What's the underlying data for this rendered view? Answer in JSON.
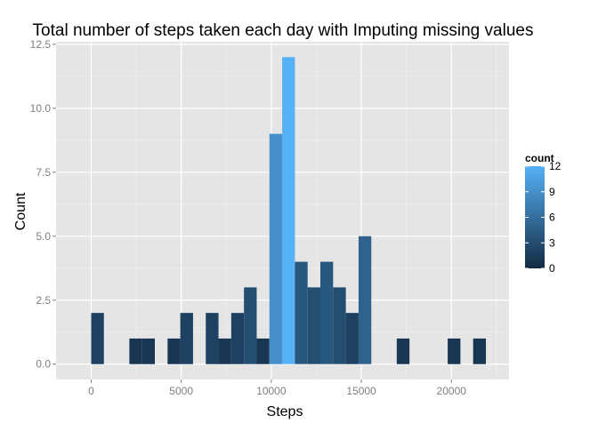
{
  "chart_data": {
    "type": "bar",
    "title": "Total number of steps taken each day with Imputing missing values",
    "xlabel": "Steps",
    "ylabel": "Count",
    "xlim": [
      -1950,
      23200
    ],
    "ylim": [
      -0.6,
      12.6
    ],
    "x_ticks": [
      0,
      5000,
      10000,
      15000,
      20000
    ],
    "y_ticks": [
      0,
      2.5,
      5,
      7.5,
      10,
      12.5
    ],
    "x_tick_labels": [
      "0",
      "5000",
      "10000",
      "15000",
      "20000"
    ],
    "y_tick_labels": [
      "0.0",
      "2.5",
      "5.0",
      "7.5",
      "10.0",
      "12.5"
    ],
    "bin_width": 707,
    "bins": [
      {
        "x": 353,
        "count": 2
      },
      {
        "x": 2474,
        "count": 1
      },
      {
        "x": 3181,
        "count": 1
      },
      {
        "x": 4595,
        "count": 1
      },
      {
        "x": 5302,
        "count": 2
      },
      {
        "x": 6716,
        "count": 2
      },
      {
        "x": 7423,
        "count": 1
      },
      {
        "x": 8130,
        "count": 2
      },
      {
        "x": 8837,
        "count": 3
      },
      {
        "x": 9544,
        "count": 1
      },
      {
        "x": 10251,
        "count": 9
      },
      {
        "x": 10958,
        "count": 12
      },
      {
        "x": 11665,
        "count": 4
      },
      {
        "x": 12372,
        "count": 3
      },
      {
        "x": 13079,
        "count": 4
      },
      {
        "x": 13786,
        "count": 3
      },
      {
        "x": 14493,
        "count": 2
      },
      {
        "x": 15200,
        "count": 5
      },
      {
        "x": 17321,
        "count": 1
      },
      {
        "x": 20149,
        "count": 1
      },
      {
        "x": 21563,
        "count": 1
      }
    ],
    "grid": true,
    "legend": {
      "title": "count",
      "position": "right",
      "ticks": [
        0,
        3,
        6,
        9,
        12
      ],
      "tick_labels": [
        "0",
        "3",
        "6",
        "9",
        "12"
      ],
      "low_color": "#132b43",
      "high_color": "#56b1f7",
      "range": [
        0,
        12
      ]
    },
    "panel_background": "#e5e5e5",
    "grid_color": "#ffffff"
  }
}
